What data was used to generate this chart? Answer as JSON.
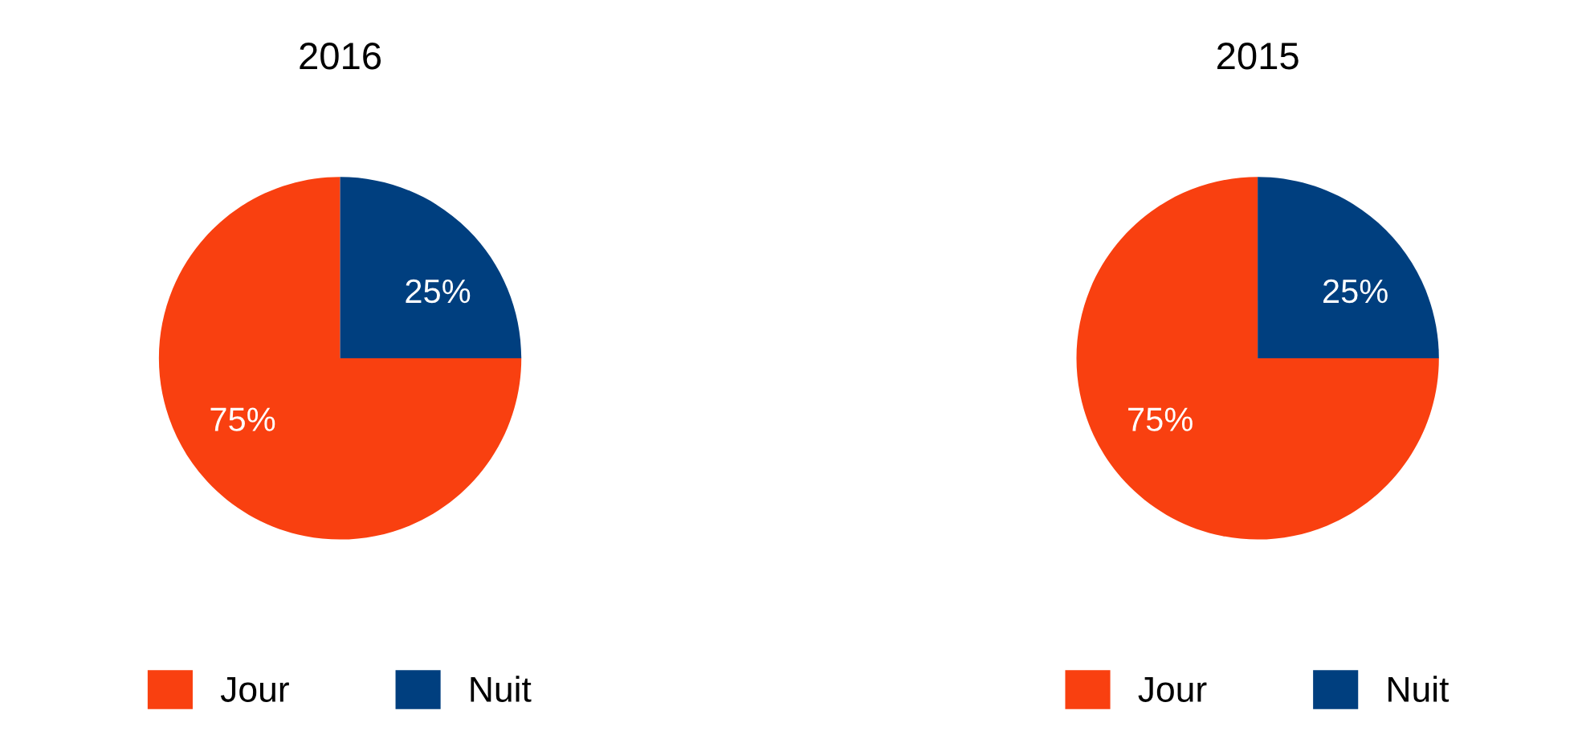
{
  "chart_data": [
    {
      "type": "pie",
      "title": "2016",
      "categories": [
        "Jour",
        "Nuit"
      ],
      "values": [
        75,
        25
      ],
      "colors": [
        "#f94010",
        "#003f7f"
      ],
      "value_labels": [
        "75%",
        "25%"
      ],
      "legend": "bottom"
    },
    {
      "type": "pie",
      "title": "2015",
      "categories": [
        "Jour",
        "Nuit"
      ],
      "values": [
        75,
        25
      ],
      "colors": [
        "#f94010",
        "#003f7f"
      ],
      "value_labels": [
        "75%",
        "25%"
      ],
      "legend": "bottom"
    }
  ]
}
